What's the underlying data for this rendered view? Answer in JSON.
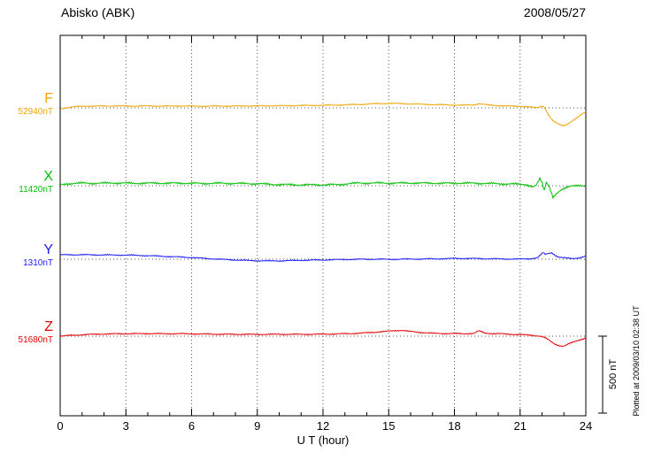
{
  "header": {
    "station": "Abisko (ABK)",
    "date": "2008/05/27"
  },
  "plot": {
    "scale_bar_label": "500 nT",
    "plotted_note": "Plotted at 2009/03/10 02:38 UT"
  },
  "chart_data": {
    "type": "line",
    "title": "Abisko (ABK) magnetogram 2008/05/27",
    "xlabel": "U T (hour)",
    "ylabel": "",
    "xlim": [
      0,
      24
    ],
    "x_ticks": [
      0,
      3,
      6,
      9,
      12,
      15,
      18,
      21,
      24
    ],
    "x_minor_tick_step_hours": 1,
    "grid": "dotted vertical lines at 3-hour ticks; dotted horizontal baseline per component",
    "scale_bar_nT": 500,
    "series": [
      {
        "name": "F",
        "color": "#f0a500",
        "baseline_value_label": "52940nT",
        "baseline_nT": 52940,
        "offsets_nT": [
          [
            0,
            -8
          ],
          [
            0.3,
            2
          ],
          [
            0.7,
            8
          ],
          [
            1,
            11
          ],
          [
            1.5,
            12
          ],
          [
            2,
            12
          ],
          [
            2.5,
            13
          ],
          [
            3,
            12
          ],
          [
            3.5,
            12
          ],
          [
            4,
            13
          ],
          [
            4.5,
            12
          ],
          [
            5,
            12
          ],
          [
            5.5,
            13
          ],
          [
            6,
            12
          ],
          [
            6.5,
            11
          ],
          [
            7,
            12
          ],
          [
            7.5,
            12
          ],
          [
            8,
            12
          ],
          [
            8.5,
            13
          ],
          [
            9,
            13
          ],
          [
            9.5,
            14
          ],
          [
            10,
            14
          ],
          [
            10.5,
            15
          ],
          [
            11,
            16
          ],
          [
            11.5,
            16
          ],
          [
            12,
            17
          ],
          [
            12.5,
            18
          ],
          [
            13,
            20
          ],
          [
            13.5,
            22
          ],
          [
            14,
            25
          ],
          [
            14.5,
            28
          ],
          [
            15,
            30
          ],
          [
            15.3,
            29
          ],
          [
            15.6,
            28
          ],
          [
            16,
            26
          ],
          [
            16.5,
            24
          ],
          [
            17,
            22
          ],
          [
            17.5,
            20
          ],
          [
            18,
            18
          ],
          [
            18.5,
            18
          ],
          [
            18.9,
            20
          ],
          [
            19.1,
            28
          ],
          [
            19.3,
            24
          ],
          [
            19.6,
            18
          ],
          [
            20,
            15
          ],
          [
            20.5,
            12
          ],
          [
            21,
            10
          ],
          [
            21.3,
            8
          ],
          [
            21.6,
            4
          ],
          [
            21.8,
            0
          ],
          [
            21.95,
            10
          ],
          [
            22.05,
            14
          ],
          [
            22.15,
            -5
          ],
          [
            22.3,
            -45
          ],
          [
            22.45,
            -75
          ],
          [
            22.6,
            -95
          ],
          [
            22.8,
            -108
          ],
          [
            23,
            -115
          ],
          [
            23.15,
            -105
          ],
          [
            23.3,
            -92
          ],
          [
            23.5,
            -75
          ],
          [
            23.7,
            -55
          ],
          [
            23.85,
            -38
          ],
          [
            24,
            -25
          ]
        ]
      },
      {
        "name": "X",
        "color": "#00c000",
        "baseline_value_label": "11420nT",
        "baseline_nT": 11420,
        "offsets_nT": [
          [
            0,
            5
          ],
          [
            0.3,
            12
          ],
          [
            0.6,
            16
          ],
          [
            1,
            17
          ],
          [
            1.5,
            16
          ],
          [
            2,
            17
          ],
          [
            2.5,
            18
          ],
          [
            3,
            17
          ],
          [
            3.5,
            16
          ],
          [
            4,
            17
          ],
          [
            4.5,
            17
          ],
          [
            5,
            16
          ],
          [
            5.5,
            17
          ],
          [
            6,
            16
          ],
          [
            6.5,
            15
          ],
          [
            7,
            16
          ],
          [
            7.5,
            16
          ],
          [
            8,
            15
          ],
          [
            8.5,
            14
          ],
          [
            9,
            13
          ],
          [
            9.5,
            10
          ],
          [
            10,
            8
          ],
          [
            10.5,
            7
          ],
          [
            11,
            6
          ],
          [
            11.5,
            6
          ],
          [
            12,
            6
          ],
          [
            12.5,
            7
          ],
          [
            12.8,
            8
          ],
          [
            13,
            12
          ],
          [
            13.3,
            15
          ],
          [
            13.6,
            17
          ],
          [
            14,
            17
          ],
          [
            14.5,
            18
          ],
          [
            15,
            17
          ],
          [
            15.5,
            17
          ],
          [
            16,
            18
          ],
          [
            16.5,
            17
          ],
          [
            17,
            17
          ],
          [
            17.5,
            16
          ],
          [
            18,
            17
          ],
          [
            18.5,
            17
          ],
          [
            19,
            16
          ],
          [
            19.5,
            15
          ],
          [
            20,
            13
          ],
          [
            20.5,
            12
          ],
          [
            21,
            10
          ],
          [
            21.3,
            8
          ],
          [
            21.6,
            -8
          ],
          [
            21.75,
            5
          ],
          [
            21.9,
            45
          ],
          [
            22,
            20
          ],
          [
            22.1,
            -30
          ],
          [
            22.2,
            25
          ],
          [
            22.35,
            -10
          ],
          [
            22.5,
            -75
          ],
          [
            22.65,
            -55
          ],
          [
            22.8,
            -38
          ],
          [
            23,
            -20
          ],
          [
            23.2,
            -5
          ],
          [
            23.4,
            4
          ],
          [
            23.6,
            2
          ],
          [
            23.8,
            -2
          ],
          [
            24,
            -8
          ]
        ]
      },
      {
        "name": "Y",
        "color": "#1a1aff",
        "baseline_value_label": "1310nT",
        "baseline_nT": 1310,
        "offsets_nT": [
          [
            0,
            28
          ],
          [
            0.5,
            29
          ],
          [
            1,
            29
          ],
          [
            1.5,
            28
          ],
          [
            2,
            28
          ],
          [
            2.5,
            27
          ],
          [
            3,
            27
          ],
          [
            3.5,
            25
          ],
          [
            4,
            23
          ],
          [
            4.5,
            20
          ],
          [
            5,
            17
          ],
          [
            5.5,
            14
          ],
          [
            6,
            11
          ],
          [
            6.5,
            6
          ],
          [
            7,
            2
          ],
          [
            7.5,
            -2
          ],
          [
            8,
            -5
          ],
          [
            8.5,
            -8
          ],
          [
            9,
            -10
          ],
          [
            9.5,
            -11
          ],
          [
            10,
            -11
          ],
          [
            10.5,
            -9
          ],
          [
            11,
            -7
          ],
          [
            11.5,
            -6
          ],
          [
            12,
            -5
          ],
          [
            12.5,
            -3
          ],
          [
            13,
            -2
          ],
          [
            13.5,
            -1
          ],
          [
            14,
            0
          ],
          [
            14.5,
            0
          ],
          [
            15,
            -1
          ],
          [
            15.5,
            0
          ],
          [
            16,
            1
          ],
          [
            16.5,
            1
          ],
          [
            17,
            2
          ],
          [
            17.5,
            3
          ],
          [
            18,
            5
          ],
          [
            18.5,
            5
          ],
          [
            19,
            4
          ],
          [
            19.5,
            3
          ],
          [
            20,
            2
          ],
          [
            20.5,
            1
          ],
          [
            21,
            1
          ],
          [
            21.3,
            2
          ],
          [
            21.6,
            5
          ],
          [
            21.8,
            10
          ],
          [
            21.95,
            30
          ],
          [
            22.05,
            42
          ],
          [
            22.15,
            30
          ],
          [
            22.3,
            38
          ],
          [
            22.45,
            42
          ],
          [
            22.6,
            25
          ],
          [
            22.75,
            15
          ],
          [
            22.9,
            10
          ],
          [
            23.1,
            7
          ],
          [
            23.3,
            5
          ],
          [
            23.5,
            6
          ],
          [
            23.7,
            9
          ],
          [
            23.85,
            14
          ],
          [
            24,
            20
          ]
        ]
      },
      {
        "name": "Z",
        "color": "#e60000",
        "baseline_value_label": "51680nT",
        "baseline_nT": 51680,
        "offsets_nT": [
          [
            0,
            0
          ],
          [
            0.5,
            5
          ],
          [
            1,
            9
          ],
          [
            1.5,
            12
          ],
          [
            2,
            14
          ],
          [
            2.5,
            15
          ],
          [
            3,
            16
          ],
          [
            3.5,
            16
          ],
          [
            4,
            17
          ],
          [
            4.5,
            16
          ],
          [
            5,
            16
          ],
          [
            5.5,
            16
          ],
          [
            6,
            15
          ],
          [
            6.5,
            14
          ],
          [
            7,
            13
          ],
          [
            7.5,
            12
          ],
          [
            8,
            12
          ],
          [
            8.5,
            12
          ],
          [
            9,
            11
          ],
          [
            9.5,
            12
          ],
          [
            10,
            12
          ],
          [
            10.5,
            12
          ],
          [
            11,
            12
          ],
          [
            11.5,
            12
          ],
          [
            12,
            13
          ],
          [
            12.5,
            14
          ],
          [
            13,
            16
          ],
          [
            13.5,
            18
          ],
          [
            14,
            22
          ],
          [
            14.5,
            27
          ],
          [
            15,
            32
          ],
          [
            15.3,
            36
          ],
          [
            15.6,
            38
          ],
          [
            15.8,
            34
          ],
          [
            16,
            30
          ],
          [
            16.5,
            24
          ],
          [
            17,
            19
          ],
          [
            17.5,
            17
          ],
          [
            18,
            17
          ],
          [
            18.5,
            16
          ],
          [
            18.9,
            18
          ],
          [
            19.1,
            34
          ],
          [
            19.25,
            28
          ],
          [
            19.4,
            20
          ],
          [
            19.7,
            17
          ],
          [
            20,
            16
          ],
          [
            20.5,
            13
          ],
          [
            21,
            10
          ],
          [
            21.5,
            6
          ],
          [
            21.8,
            2
          ],
          [
            22,
            -2
          ],
          [
            22.2,
            -15
          ],
          [
            22.4,
            -35
          ],
          [
            22.6,
            -52
          ],
          [
            22.8,
            -62
          ],
          [
            23,
            -65
          ],
          [
            23.2,
            -52
          ],
          [
            23.4,
            -40
          ],
          [
            23.6,
            -30
          ],
          [
            23.8,
            -20
          ],
          [
            24,
            -12
          ]
        ]
      }
    ]
  }
}
